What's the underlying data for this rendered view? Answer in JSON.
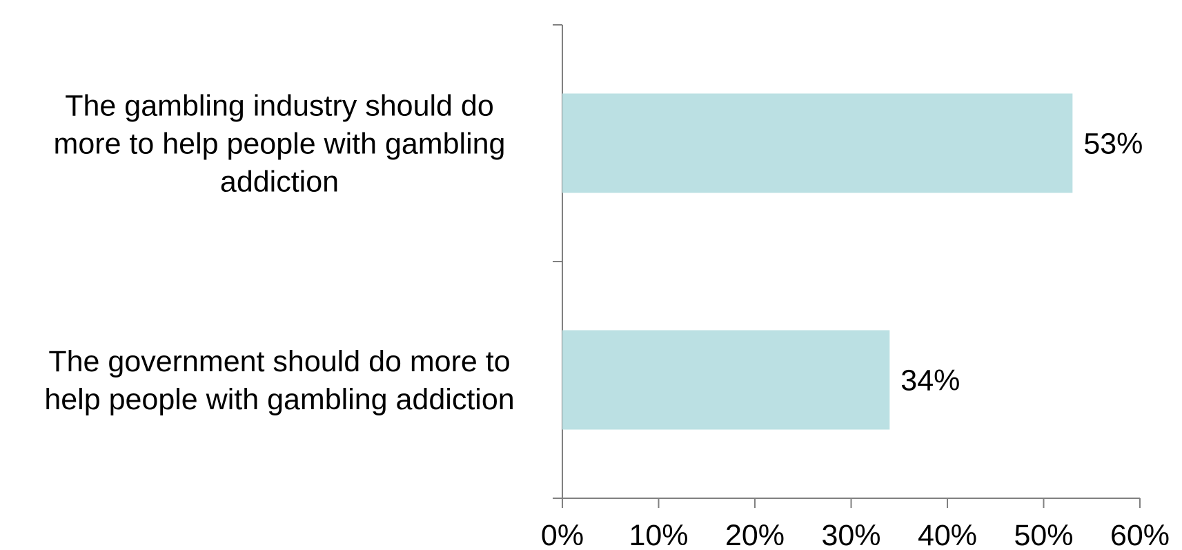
{
  "chart_data": {
    "type": "bar",
    "orientation": "horizontal",
    "categories": [
      "The gambling industry should do more to help people with gambling addiction",
      "The government should do more to help people with gambling addiction"
    ],
    "category_lines": [
      [
        "The gambling industry should do",
        "more to help people with gambling",
        "addiction"
      ],
      [
        "The government should do more to",
        "help people with gambling addiction"
      ]
    ],
    "values": [
      53,
      34
    ],
    "value_labels": [
      "53%",
      "34%"
    ],
    "xlim": [
      0,
      60
    ],
    "xticks": [
      0,
      10,
      20,
      30,
      40,
      50,
      60
    ],
    "xtick_labels": [
      "0%",
      "10%",
      "20%",
      "30%",
      "40%",
      "50%",
      "60%"
    ],
    "title": "",
    "xlabel": "",
    "ylabel": "",
    "grid": false,
    "legend": "none",
    "bar_color": "#bbe0e3",
    "axis_color": "#808080"
  }
}
